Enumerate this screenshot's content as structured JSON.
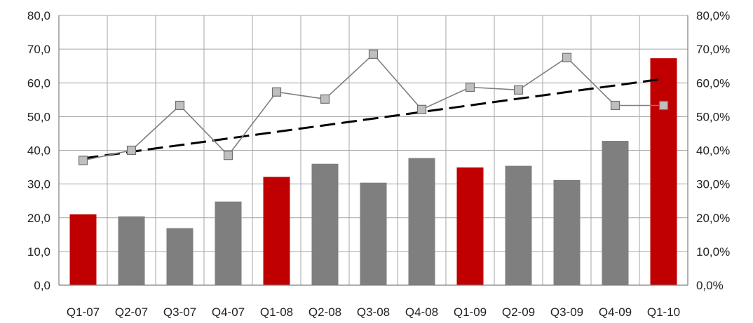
{
  "chart_data": {
    "type": "bar",
    "categories": [
      "Q1-07",
      "Q2-07",
      "Q3-07",
      "Q4-07",
      "Q1-08",
      "Q2-08",
      "Q3-08",
      "Q4-08",
      "Q1-09",
      "Q2-09",
      "Q3-09",
      "Q4-09",
      "Q1-10"
    ],
    "series": [
      {
        "type": "bar",
        "axis": "left",
        "values": [
          21.0,
          20.4,
          16.9,
          24.8,
          32.1,
          36.0,
          30.4,
          37.7,
          34.9,
          35.4,
          31.2,
          42.8,
          67.3
        ],
        "colors": [
          "#c00000",
          "#7f7f7f",
          "#7f7f7f",
          "#7f7f7f",
          "#c00000",
          "#7f7f7f",
          "#7f7f7f",
          "#7f7f7f",
          "#c00000",
          "#7f7f7f",
          "#7f7f7f",
          "#7f7f7f",
          "#c00000"
        ]
      },
      {
        "type": "line",
        "axis": "right",
        "unit": "%",
        "values": [
          37.0,
          40.0,
          53.3,
          38.5,
          57.3,
          55.2,
          68.5,
          52.1,
          58.7,
          57.9,
          67.5,
          53.3,
          53.3
        ],
        "color": "#7f7f7f",
        "marker": "square",
        "marker_fill": "#bfbfbf"
      },
      {
        "type": "trendline",
        "axis": "right",
        "style": "dashed",
        "color": "#000000",
        "start": 37.6,
        "end": 61.2
      }
    ],
    "y_left": {
      "range": [
        0,
        80
      ],
      "ticks": [
        "0,0",
        "10,0",
        "20,0",
        "30,0",
        "40,0",
        "50,0",
        "60,0",
        "70,0",
        "80,0"
      ]
    },
    "y_right": {
      "range": [
        0,
        80
      ],
      "ticks": [
        "0,0%",
        "10,0%",
        "20,0%",
        "30,0%",
        "40,0%",
        "50,0%",
        "60,0%",
        "70,0%",
        "80,0%"
      ]
    },
    "grid": {
      "horizontal": true,
      "vertical": true
    },
    "legend": "none",
    "title": "",
    "xlabel": "",
    "ylabel": ""
  }
}
